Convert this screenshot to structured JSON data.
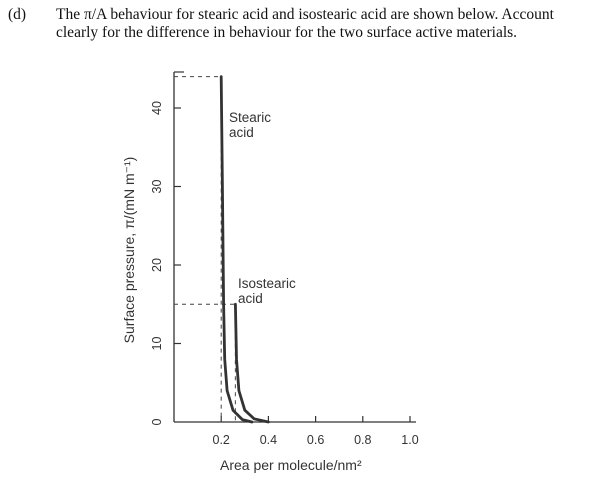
{
  "question": {
    "label": "(d)",
    "lines": [
      "The π/A behaviour for stearic acid and isostearic acid are shown below. Account",
      "clearly for the difference in behaviour for the two surface active materials."
    ]
  },
  "chart_data": {
    "type": "line",
    "xlabel": "Area per molecule/nm²",
    "ylabel": "Surface pressure, π/(mN m⁻¹)",
    "x_ticks": [
      "0.2",
      "0.4",
      "0.6",
      "0.8",
      "1.0"
    ],
    "y_ticks": [
      "0",
      "10",
      "20",
      "30",
      "40"
    ],
    "xlim": [
      0,
      1.0
    ],
    "ylim": [
      0,
      45
    ],
    "grid": false,
    "series": [
      {
        "name": "Stearic acid",
        "points": [
          [
            0.2,
            44
          ],
          [
            0.205,
            30
          ],
          [
            0.21,
            15
          ],
          [
            0.215,
            8
          ],
          [
            0.225,
            4
          ],
          [
            0.25,
            1.5
          ],
          [
            0.29,
            0.3
          ],
          [
            0.33,
            0
          ]
        ]
      },
      {
        "name": "Isostearic acid",
        "points": [
          [
            0.26,
            15
          ],
          [
            0.265,
            8
          ],
          [
            0.275,
            4
          ],
          [
            0.3,
            1.5
          ],
          [
            0.34,
            0.4
          ],
          [
            0.4,
            0
          ]
        ]
      }
    ],
    "reference_lines": [
      {
        "x": 0.2,
        "y": 44
      },
      {
        "x": 0.26,
        "y": 15
      }
    ]
  }
}
